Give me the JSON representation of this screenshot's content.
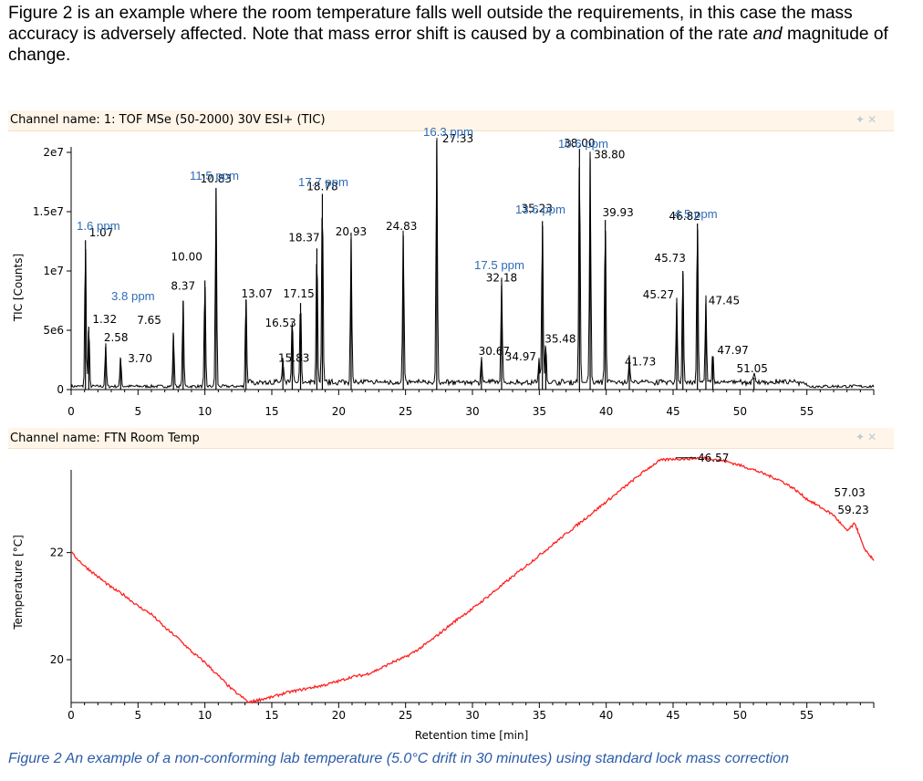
{
  "intro": {
    "line1": "Figure 2 is an example where the room temperature falls well outside the requirements, in this case the mass accuracy is adversely affected.  Note that mass error shift is caused by a combination of the rate",
    "emph": "and",
    "line2": " magnitude of change."
  },
  "caption": "Figure 2  An example of a non-conforming lab temperature (5.0°C drift in 30 minutes) using standard lock mass correction",
  "colors": {
    "tic": "#000000",
    "temperature": "#ff2020",
    "ppm_label": "#2e6cb5",
    "panel_header": "#fff5e8"
  },
  "chart_data": [
    {
      "type": "line",
      "title": "Channel name: 1: TOF MSe (50-2000) 30V ESI+ (TIC)",
      "ylabel": "TIC [Counts]",
      "xlabel": "",
      "xlim": [
        0,
        60
      ],
      "ylim": [
        0,
        22000000
      ],
      "x_ticks": [
        "0",
        "5",
        "10",
        "15",
        "20",
        "25",
        "30",
        "35",
        "40",
        "45",
        "50",
        "55"
      ],
      "y_ticks": [
        {
          "label": "0",
          "value": 0
        },
        {
          "label": "5e6",
          "value": 5000000
        },
        {
          "label": "1e7",
          "value": 10000000
        },
        {
          "label": "1.5e7",
          "value": 15000000
        },
        {
          "label": "2e7",
          "value": 20000000
        }
      ],
      "peaks": [
        {
          "rt": 1.07,
          "label": "1.07",
          "height": 12600000
        },
        {
          "rt": 1.32,
          "label": "1.32",
          "height": 5300000
        },
        {
          "rt": 2.58,
          "label": "2.58",
          "height": 3600000
        },
        {
          "rt": 3.7,
          "label": "3.70",
          "height": 2600000
        },
        {
          "rt": 7.65,
          "label": "7.65",
          "height": 4600000
        },
        {
          "rt": 8.37,
          "label": "8.37",
          "height": 7500000
        },
        {
          "rt": 10.0,
          "label": "10.00",
          "height": 9200000
        },
        {
          "rt": 10.83,
          "label": "10.83",
          "height": 17000000
        },
        {
          "rt": 13.07,
          "label": "13.07",
          "height": 7600000
        },
        {
          "rt": 15.83,
          "label": "15.83",
          "height": 1900000
        },
        {
          "rt": 16.53,
          "label": "16.53",
          "height": 5600000
        },
        {
          "rt": 17.15,
          "label": "17.15",
          "height": 7300000
        },
        {
          "rt": 18.37,
          "label": "18.37",
          "height": 11900000
        },
        {
          "rt": 18.78,
          "label": "18.78",
          "height": 16500000
        },
        {
          "rt": 20.93,
          "label": "20.93",
          "height": 12700000
        },
        {
          "rt": 24.83,
          "label": "24.83",
          "height": 13000000
        },
        {
          "rt": 27.33,
          "label": "27.33",
          "height": 21000000
        },
        {
          "rt": 30.67,
          "label": "30.67",
          "height": 2300000
        },
        {
          "rt": 32.18,
          "label": "32.18",
          "height": 8800000
        },
        {
          "rt": 34.97,
          "label": "34.97",
          "height": 2000000
        },
        {
          "rt": 35.23,
          "label": "35.23",
          "height": 14200000
        },
        {
          "rt": 35.48,
          "label": "35.48",
          "height": 3500000
        },
        {
          "rt": 38.0,
          "label": "38.00",
          "height": 20300000
        },
        {
          "rt": 38.8,
          "label": "38.80",
          "height": 19500000
        },
        {
          "rt": 39.93,
          "label": "39.93",
          "height": 14300000
        },
        {
          "rt": 41.73,
          "label": "41.73",
          "height": 2200000
        },
        {
          "rt": 45.27,
          "label": "45.27",
          "height": 7300000
        },
        {
          "rt": 45.73,
          "label": "45.73",
          "height": 10000000
        },
        {
          "rt": 46.82,
          "label": "46.82",
          "height": 14000000
        },
        {
          "rt": 47.45,
          "label": "47.45",
          "height": 7200000
        },
        {
          "rt": 47.97,
          "label": "47.97",
          "height": 2700000
        },
        {
          "rt": 51.05,
          "label": "51.05",
          "height": 1000000
        }
      ],
      "ppm_annotations": [
        "1.6 ppm",
        "3.8 ppm",
        "11.5 ppm",
        "17.7 ppm",
        "16.3 ppm",
        "17.5 ppm",
        "13.6 ppm",
        "10.6 ppm",
        "4.5 ppm"
      ]
    },
    {
      "type": "line",
      "title": "Channel name: FTN Room Temp",
      "ylabel": "Temperature [°C]",
      "xlabel": "Retention time [min]",
      "xlim": [
        0,
        60
      ],
      "ylim": [
        19.2,
        23.8
      ],
      "x_ticks": [
        "0",
        "5",
        "10",
        "15",
        "20",
        "25",
        "30",
        "35",
        "40",
        "45",
        "50",
        "55"
      ],
      "y_ticks": [
        {
          "label": "20",
          "value": 20
        },
        {
          "label": "22",
          "value": 22
        }
      ],
      "series": [
        {
          "x": [
            0,
            1,
            2,
            3,
            4,
            5,
            6,
            7,
            8,
            9,
            10,
            11,
            12,
            13.3,
            14,
            15,
            16,
            17,
            18,
            19,
            20,
            21,
            22,
            23,
            24,
            25,
            26,
            27,
            28,
            29,
            30,
            31,
            32,
            33,
            34,
            35,
            36,
            37,
            38,
            39,
            40,
            41,
            42,
            43,
            44,
            45,
            46,
            47,
            48,
            49,
            50,
            51,
            52,
            53,
            54,
            55,
            56,
            57,
            58,
            58.6,
            59.23,
            60
          ],
          "y": [
            22.0,
            21.75,
            21.55,
            21.35,
            21.2,
            21.0,
            20.85,
            20.6,
            20.4,
            20.15,
            19.95,
            19.7,
            19.45,
            19.2,
            19.25,
            19.3,
            19.38,
            19.43,
            19.48,
            19.53,
            19.6,
            19.68,
            19.72,
            19.82,
            19.95,
            20.05,
            20.2,
            20.38,
            20.58,
            20.78,
            20.95,
            21.15,
            21.35,
            21.55,
            21.75,
            21.95,
            22.15,
            22.35,
            22.55,
            22.75,
            22.95,
            23.15,
            23.35,
            23.55,
            23.72,
            23.75,
            23.75,
            23.77,
            23.75,
            23.7,
            23.63,
            23.55,
            23.45,
            23.35,
            23.2,
            23.0,
            22.85,
            22.7,
            22.4,
            22.55,
            22.1,
            21.85
          ]
        }
      ],
      "annotations": [
        "46.57",
        "57.03",
        "59.23"
      ]
    }
  ]
}
